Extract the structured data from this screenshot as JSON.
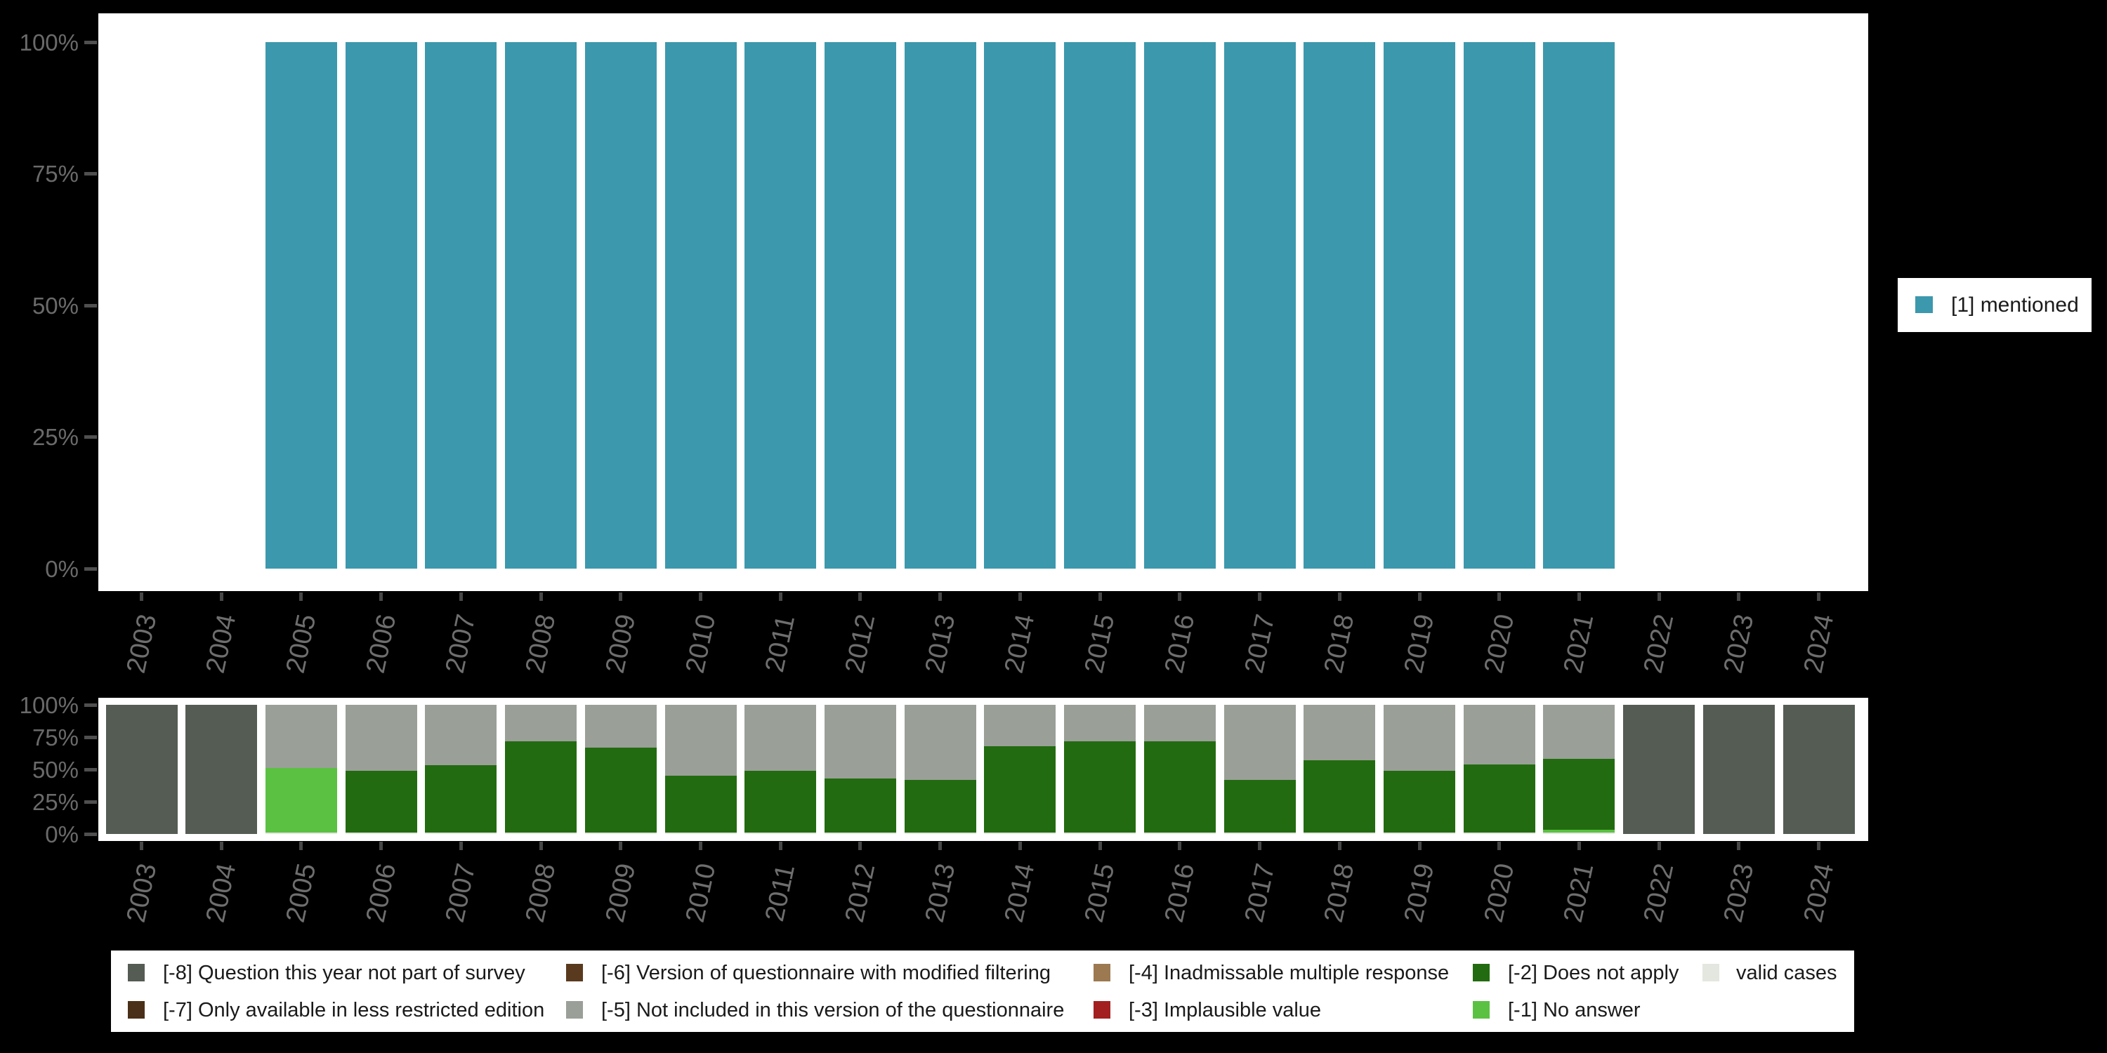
{
  "chart_data": [
    {
      "type": "bar",
      "stacked": true,
      "title": "",
      "xlabel": "",
      "ylabel": "",
      "ylim": [
        0,
        100
      ],
      "grid": false,
      "ytick_labels": [
        "100%",
        "75%",
        "50%",
        "25%",
        "0%"
      ],
      "categories": [
        "2003",
        "2004",
        "2005",
        "2006",
        "2007",
        "2008",
        "2009",
        "2010",
        "2011",
        "2012",
        "2013",
        "2014",
        "2015",
        "2016",
        "2017",
        "2018",
        "2019",
        "2020",
        "2021",
        "2022",
        "2023",
        "2024"
      ],
      "legend_position": "right",
      "series": [
        {
          "name": "[1] mentioned",
          "color": "#3C98AD",
          "values": [
            null,
            null,
            100,
            100,
            100,
            100,
            100,
            100,
            100,
            100,
            100,
            100,
            100,
            100,
            100,
            100,
            100,
            100,
            100,
            null,
            null,
            null
          ]
        }
      ]
    },
    {
      "type": "bar",
      "stacked": true,
      "title": "",
      "xlabel": "",
      "ylabel": "",
      "ylim": [
        0,
        100
      ],
      "grid": false,
      "ytick_labels": [
        "100%",
        "75%",
        "50%",
        "25%",
        "0%"
      ],
      "categories": [
        "2003",
        "2004",
        "2005",
        "2006",
        "2007",
        "2008",
        "2009",
        "2010",
        "2011",
        "2012",
        "2013",
        "2014",
        "2015",
        "2016",
        "2017",
        "2018",
        "2019",
        "2020",
        "2021",
        "2022",
        "2023",
        "2024"
      ],
      "legend_position": "bottom",
      "series": [
        {
          "name": "valid cases",
          "color": "#E3E7DF",
          "values": [
            0,
            0,
            1,
            1,
            1,
            1,
            1,
            1,
            1,
            1,
            1,
            1,
            1,
            1,
            1,
            1,
            1,
            1,
            1,
            0,
            0,
            0
          ]
        },
        {
          "name": "[-1] No answer",
          "color": "#5BC142",
          "values": [
            0,
            0,
            50,
            0,
            0,
            0,
            0,
            0,
            0,
            0,
            0,
            0,
            0,
            0,
            0,
            0,
            0,
            0,
            2,
            0,
            0,
            0
          ]
        },
        {
          "name": "[-2] Does not apply",
          "color": "#236B10",
          "values": [
            0,
            0,
            0,
            48,
            52,
            71,
            66,
            44,
            48,
            42,
            41,
            67,
            71,
            71,
            41,
            56,
            48,
            53,
            55,
            0,
            0,
            0
          ]
        },
        {
          "name": "[-5] Not included in this version of the questionnaire",
          "color": "#9A9F98",
          "values": [
            0,
            0,
            49,
            51,
            47,
            28,
            33,
            55,
            51,
            57,
            58,
            32,
            28,
            28,
            58,
            43,
            51,
            46,
            42,
            0,
            0,
            0
          ]
        },
        {
          "name": "[-8] Question this year not part of survey",
          "color": "#545C54",
          "values": [
            100,
            100,
            0,
            0,
            0,
            0,
            0,
            0,
            0,
            0,
            0,
            0,
            0,
            0,
            0,
            0,
            0,
            0,
            0,
            100,
            100,
            100
          ]
        }
      ]
    }
  ],
  "legend_right": {
    "label": "[1] mentioned",
    "swatch_color": "#3C98AD"
  },
  "legend_bottom": {
    "items": [
      {
        "label": "[-8] Question this year not part of survey",
        "color": "#545C54",
        "column": 1,
        "row": 1
      },
      {
        "label": "[-7] Only available in less restricted edition",
        "color": "#4A3018",
        "column": 1,
        "row": 2
      },
      {
        "label": "[-6] Version of questionnaire with modified filtering",
        "color": "#5A3A1E",
        "column": 2,
        "row": 1
      },
      {
        "label": "[-5] Not included in this version of the questionnaire",
        "color": "#9A9F98",
        "column": 2,
        "row": 2
      },
      {
        "label": "[-4] Inadmissable multiple response",
        "color": "#9C7950",
        "column": 3,
        "row": 1
      },
      {
        "label": "[-3] Implausible value",
        "color": "#A32020",
        "column": 3,
        "row": 2
      },
      {
        "label": "[-2] Does not apply",
        "color": "#236B10",
        "column": 4,
        "row": 1
      },
      {
        "label": "[-1] No answer",
        "color": "#5BC142",
        "column": 4,
        "row": 2
      },
      {
        "label": "valid cases",
        "color": "#E3E7DF",
        "column": 5,
        "row": 1
      }
    ]
  },
  "colors": {
    "background": "#000000",
    "panel": "#FFFFFF",
    "axis_text": "#6A6A6A",
    "year_text": "#6E6E6E",
    "tick": "#474747"
  }
}
